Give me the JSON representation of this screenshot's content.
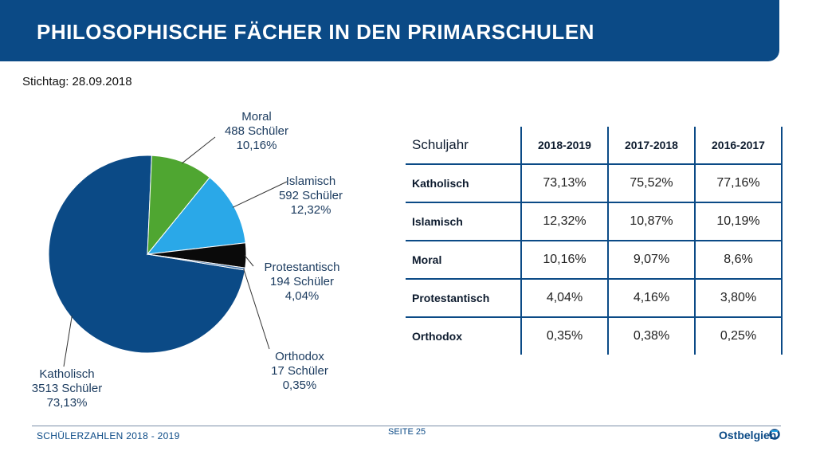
{
  "header": {
    "title": "PHILOSOPHISCHE FÄCHER IN DEN PRIMARSCHULEN"
  },
  "stichtag": "Stichtag: 28.09.2018",
  "chart_data": {
    "type": "pie",
    "slices": [
      {
        "name": "Katholisch",
        "students": "3513 Schüler",
        "percent_label": "73,13%",
        "value": 73.13,
        "color": "#0b4a86"
      },
      {
        "name": "Moral",
        "students": "488 Schüler",
        "percent_label": "10,16%",
        "value": 10.16,
        "color": "#4fa631"
      },
      {
        "name": "Islamisch",
        "students": "592 Schüler",
        "percent_label": "12,32%",
        "value": 12.32,
        "color": "#2aa8e8"
      },
      {
        "name": "Protestantisch",
        "students": "194 Schüler",
        "percent_label": "4,04%",
        "value": 4.04,
        "color": "#0a0a0a"
      },
      {
        "name": "Orthodox",
        "students": "17 Schüler",
        "percent_label": "0,35%",
        "value": 0.35,
        "color": "#3b6ea5"
      }
    ]
  },
  "table": {
    "header_label": "Schuljahr",
    "years": [
      "2018-2019",
      "2017-2018",
      "2016-2017"
    ],
    "rows": [
      {
        "label": "Katholisch",
        "values": [
          "73,13%",
          "75,52%",
          "77,16%"
        ]
      },
      {
        "label": "Islamisch",
        "values": [
          "12,32%",
          "10,87%",
          "10,19%"
        ]
      },
      {
        "label": "Moral",
        "values": [
          "10,16%",
          "9,07%",
          "8,6%"
        ]
      },
      {
        "label": "Protestantisch",
        "values": [
          "4,04%",
          "4,16%",
          "3,80%"
        ]
      },
      {
        "label": "Orthodox",
        "values": [
          "0,35%",
          "0,38%",
          "0,25%"
        ]
      }
    ]
  },
  "footer": {
    "left": "SCHÜLERZAHLEN 2018 - 2019",
    "page": "SEITE 25",
    "logo": "Ostbelgien"
  }
}
